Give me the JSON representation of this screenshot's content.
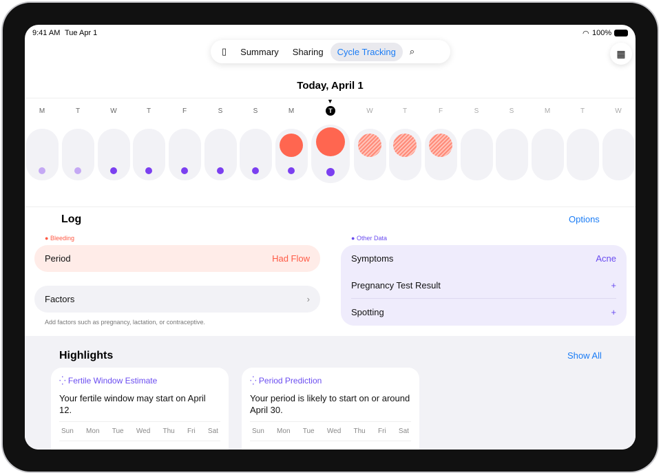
{
  "status": {
    "time": "9:41 AM",
    "date": "Tue Apr 1",
    "battery": "100%"
  },
  "nav": {
    "tabs": [
      "Summary",
      "Sharing",
      "Cycle Tracking"
    ],
    "active": "Cycle Tracking"
  },
  "header": {
    "title": "Today, April 1",
    "today_marker": "T"
  },
  "days": [
    {
      "l": "M",
      "flow": "none",
      "dot": "light"
    },
    {
      "l": "T",
      "flow": "none",
      "dot": "light"
    },
    {
      "l": "W",
      "flow": "none",
      "dot": "dark"
    },
    {
      "l": "T",
      "flow": "none",
      "dot": "dark"
    },
    {
      "l": "F",
      "flow": "none",
      "dot": "dark"
    },
    {
      "l": "S",
      "flow": "none",
      "dot": "dark"
    },
    {
      "l": "S",
      "flow": "none",
      "dot": "dark"
    },
    {
      "l": "M",
      "flow": "logged",
      "dot": "dark"
    },
    {
      "l": "T",
      "flow": "logged",
      "dot": "dark",
      "today": true
    },
    {
      "l": "W",
      "flow": "predicted",
      "dot": "none"
    },
    {
      "l": "T",
      "flow": "predicted",
      "dot": "none"
    },
    {
      "l": "F",
      "flow": "predicted",
      "dot": "none"
    },
    {
      "l": "S",
      "flow": "none",
      "dot": "none"
    },
    {
      "l": "S",
      "flow": "none",
      "dot": "none"
    },
    {
      "l": "M",
      "flow": "none",
      "dot": "none"
    },
    {
      "l": "T",
      "flow": "none",
      "dot": "none"
    },
    {
      "l": "W",
      "flow": "none",
      "dot": "none"
    }
  ],
  "log": {
    "title": "Log",
    "options": "Options",
    "bleeding_label": "Bleeding",
    "period_label": "Period",
    "period_value": "Had Flow",
    "factors_label": "Factors",
    "factors_hint": "Add factors such as pregnancy, lactation, or contraceptive.",
    "other_label": "Other Data",
    "symptoms_label": "Symptoms",
    "symptoms_value": "Acne",
    "pregnancy_label": "Pregnancy Test Result",
    "spotting_label": "Spotting",
    "add": "+"
  },
  "highlights": {
    "title": "Highlights",
    "show_all": "Show All",
    "weekdays": [
      "Sun",
      "Mon",
      "Tue",
      "Wed",
      "Thu",
      "Fri",
      "Sat"
    ],
    "cards": [
      {
        "title": "Fertile Window Estimate",
        "body": "Your fertile window may start on April 12."
      },
      {
        "title": "Period Prediction",
        "body": "Your period is likely to start on or around April 30."
      }
    ]
  },
  "colors": {
    "accent": "#1a7cf5",
    "flow": "#ff6650",
    "purple": "#7b3ff0"
  }
}
